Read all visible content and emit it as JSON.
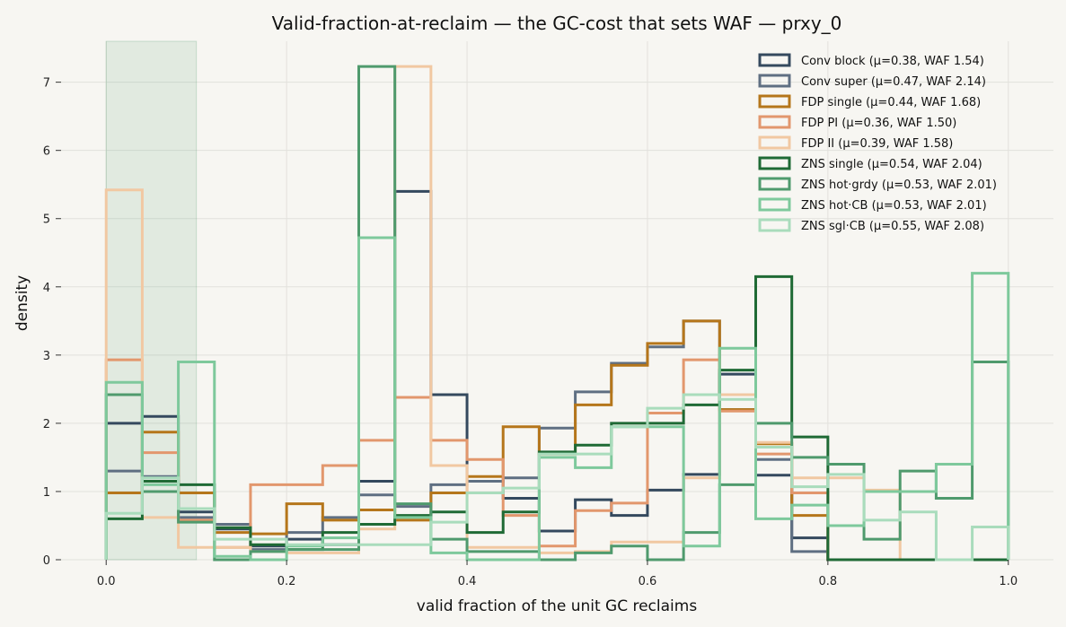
{
  "chart_data": {
    "type": "histogram-step",
    "title": "Valid-fraction-at-reclaim — the GC-cost that sets WAF — prxy_0",
    "xlabel": "valid fraction of the unit GC reclaims",
    "ylabel": "density",
    "xlim": [
      -0.05,
      1.05
    ],
    "ylim": [
      0,
      7.6
    ],
    "x_ticks": [
      0.0,
      0.2,
      0.4,
      0.6,
      0.8,
      1.0
    ],
    "x_tick_labels": [
      "0.0",
      "0.2",
      "0.4",
      "0.6",
      "0.8",
      "1.0"
    ],
    "y_ticks": [
      0,
      1,
      2,
      3,
      4,
      5,
      6,
      7
    ],
    "y_tick_labels": [
      "0",
      "1",
      "2",
      "3",
      "4",
      "5",
      "6",
      "7"
    ],
    "grid": true,
    "legend_position": "top-right",
    "shaded_region": {
      "x0": 0.0,
      "x1": 0.1,
      "color": "#4f9a6d"
    },
    "bin_edges": [
      0.0,
      0.04,
      0.08,
      0.12,
      0.16,
      0.2,
      0.24,
      0.28,
      0.32,
      0.36,
      0.4,
      0.44,
      0.48,
      0.52,
      0.56,
      0.6,
      0.64,
      0.68,
      0.72,
      0.76,
      0.8,
      0.84,
      0.88,
      0.92,
      0.96,
      1.0
    ],
    "series": [
      {
        "name": "Conv block  (μ=0.38, WAF 1.54)",
        "color": "#34495e",
        "values": [
          2.0,
          2.1,
          0.7,
          0.45,
          0.2,
          0.3,
          0.22,
          1.15,
          5.4,
          2.42,
          1.15,
          0.9,
          0.42,
          0.88,
          0.65,
          1.02,
          1.25,
          2.72,
          1.24,
          0.32,
          0.0,
          0.0,
          0.0,
          0.0,
          0.0
        ]
      },
      {
        "name": "Conv super  (μ=0.47, WAF 2.14)",
        "color": "#5f6f82",
        "values": [
          1.3,
          1.22,
          0.62,
          0.52,
          0.15,
          0.4,
          0.62,
          0.95,
          0.78,
          1.1,
          1.15,
          1.2,
          1.93,
          2.46,
          2.88,
          3.12,
          3.5,
          2.2,
          1.47,
          0.12,
          0.0,
          0.0,
          0.0,
          0.0,
          0.0
        ]
      },
      {
        "name": "FDP single  (μ=0.44, WAF 1.68)",
        "color": "#b5761b",
        "values": [
          0.98,
          1.87,
          0.98,
          0.4,
          0.38,
          0.82,
          0.58,
          0.73,
          0.58,
          0.98,
          1.22,
          1.95,
          1.55,
          2.27,
          2.85,
          3.17,
          3.5,
          2.2,
          1.7,
          0.65,
          0.0,
          0.0,
          0.0,
          0.0,
          0.0
        ]
      },
      {
        "name": "FDP PI  (μ=0.36, WAF 1.50)",
        "color": "#e2976d",
        "values": [
          2.93,
          1.57,
          0.58,
          0.18,
          1.1,
          1.1,
          1.38,
          1.75,
          2.38,
          1.75,
          1.47,
          0.65,
          0.2,
          0.72,
          0.83,
          2.15,
          2.93,
          2.18,
          1.55,
          0.98,
          0.0,
          0.0,
          0.0,
          0.0,
          0.0
        ]
      },
      {
        "name": "FDP II  (μ=0.39, WAF 1.58)",
        "color": "#f1c8a2",
        "values": [
          5.42,
          0.62,
          0.18,
          0.18,
          0.12,
          0.1,
          0.1,
          0.45,
          7.23,
          1.38,
          0.18,
          0.18,
          0.1,
          0.12,
          0.26,
          0.26,
          1.2,
          2.42,
          1.72,
          1.2,
          1.2,
          1.02,
          0.0,
          0.0,
          0.0
        ]
      },
      {
        "name": "ZNS single  (μ=0.54, WAF 2.04)",
        "color": "#1f6a35",
        "values": [
          0.6,
          1.15,
          1.1,
          0.47,
          0.22,
          0.15,
          0.4,
          0.52,
          0.65,
          0.7,
          0.4,
          0.7,
          1.58,
          1.68,
          2.0,
          2.0,
          2.27,
          2.78,
          4.15,
          1.8,
          0.0,
          0.0,
          0.0,
          0.0,
          0.0
        ]
      },
      {
        "name": "ZNS hot·grdy  (μ=0.53, WAF 2.01)",
        "color": "#4f9a6d",
        "values": [
          2.42,
          1.0,
          0.55,
          0.0,
          0.12,
          0.15,
          0.15,
          7.23,
          0.82,
          0.3,
          0.12,
          0.12,
          0.0,
          0.1,
          0.2,
          0.0,
          0.4,
          1.1,
          2.0,
          1.5,
          1.4,
          0.3,
          1.3,
          0.9,
          2.9
        ]
      },
      {
        "name": "ZNS hot·CB  (μ=0.53, WAF 2.01)",
        "color": "#7ec99c",
        "values": [
          2.6,
          1.1,
          2.9,
          0.05,
          0.0,
          0.2,
          0.32,
          4.72,
          0.62,
          0.1,
          0.0,
          0.0,
          1.5,
          1.35,
          1.95,
          1.95,
          0.2,
          3.1,
          0.6,
          0.8,
          0.5,
          1.0,
          1.0,
          1.4,
          4.2
        ]
      },
      {
        "name": "ZNS sgl·CB  (μ=0.55, WAF 2.08)",
        "color": "#a9dcbc",
        "values": [
          0.68,
          1.2,
          0.75,
          0.3,
          0.3,
          0.22,
          0.22,
          0.22,
          0.22,
          0.55,
          0.98,
          1.05,
          1.55,
          1.55,
          1.95,
          2.22,
          2.42,
          2.35,
          1.65,
          1.07,
          1.25,
          0.58,
          0.7,
          0.0,
          0.48
        ]
      }
    ]
  }
}
